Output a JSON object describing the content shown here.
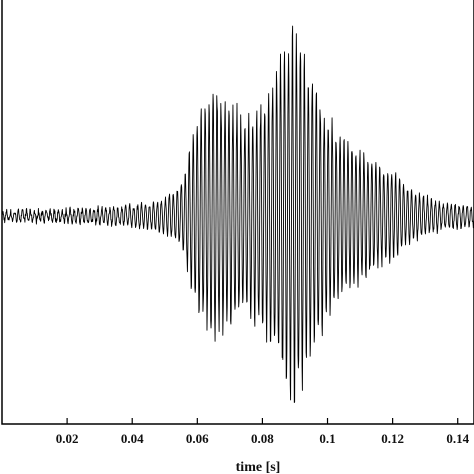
{
  "chart_data": {
    "type": "line",
    "title": "",
    "xlabel": "time [s]",
    "ylabel": "",
    "xlim": [
      0.0,
      0.145
    ],
    "ylim": [
      -1.0,
      1.0
    ],
    "x_ticks": [
      0.02,
      0.04,
      0.06,
      0.08,
      0.1,
      0.12,
      0.14
    ],
    "x_tick_labels": [
      "0.02",
      "0.04",
      "0.06",
      "0.08",
      "0.1",
      "0.12",
      "0.14"
    ],
    "grid": false,
    "series": [
      {
        "style": "waveform",
        "color": "#000000",
        "envelope": {
          "t": [
            0.0,
            0.02,
            0.04,
            0.05,
            0.055,
            0.06,
            0.065,
            0.07,
            0.075,
            0.08,
            0.085,
            0.09,
            0.095,
            0.1,
            0.105,
            0.11,
            0.115,
            0.12,
            0.125,
            0.13,
            0.135,
            0.14,
            0.145
          ],
          "amplitude": [
            0.02,
            0.03,
            0.05,
            0.09,
            0.16,
            0.5,
            0.65,
            0.58,
            0.5,
            0.58,
            0.78,
            0.98,
            0.72,
            0.52,
            0.4,
            0.34,
            0.28,
            0.22,
            0.14,
            0.1,
            0.07,
            0.06,
            0.05
          ]
        }
      }
    ]
  }
}
